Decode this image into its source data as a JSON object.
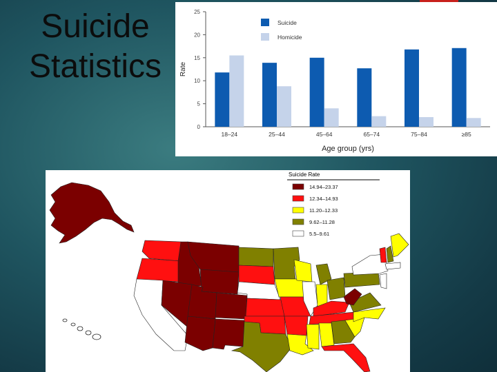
{
  "slide": {
    "title_line1": "Suicide",
    "title_line2": "Statistics"
  },
  "chart_data": [
    {
      "type": "bar",
      "categories": [
        "18–24",
        "25–44",
        "45–64",
        "65–74",
        "75–84",
        "≥85"
      ],
      "series": [
        {
          "name": "Suicide",
          "values": [
            11.8,
            13.9,
            15.0,
            12.7,
            16.8,
            17.1
          ],
          "color": "#0d5bb0"
        },
        {
          "name": "Homicide",
          "values": [
            15.5,
            8.8,
            4.0,
            2.3,
            2.1,
            1.9
          ],
          "color": "#c5d3ea"
        }
      ],
      "title": "",
      "xlabel": "Age group (yrs)",
      "ylabel": "Rate",
      "ylim": [
        0,
        25
      ],
      "yticks": [
        0,
        5,
        10,
        15,
        20,
        25
      ],
      "grid": false,
      "legend_position": "top-left"
    },
    {
      "type": "map",
      "legend_title": "Suicide Rate",
      "bins": [
        {
          "label": "14.94–23.37",
          "color": "#7b0000"
        },
        {
          "label": "12.34–14.93",
          "color": "#ff1010"
        },
        {
          "label": "11.20–12.33",
          "color": "#ffff00"
        },
        {
          "label": "9.62–11.28",
          "color": "#808000"
        },
        {
          "label": "5.5–9.61",
          "color": "#ffffff"
        }
      ]
    }
  ]
}
